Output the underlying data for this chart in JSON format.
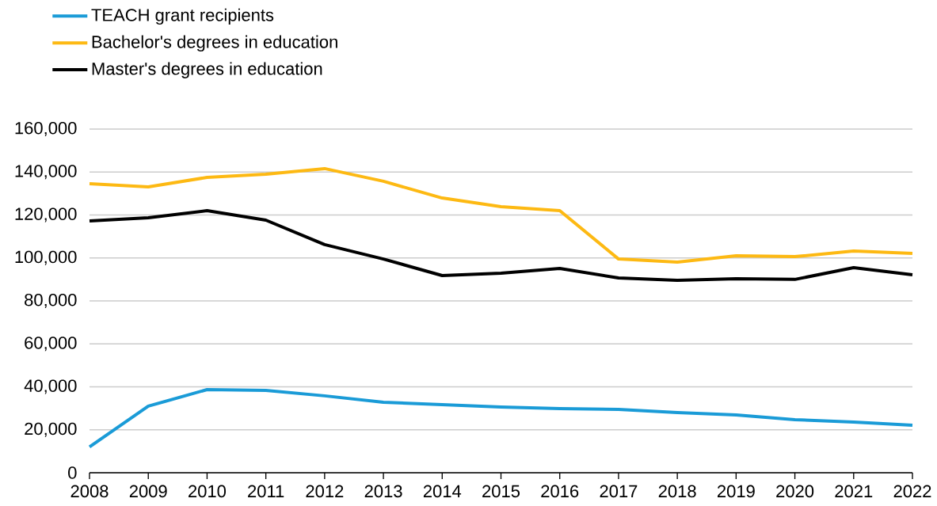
{
  "chart_data": {
    "type": "line",
    "x": [
      2008,
      2009,
      2010,
      2011,
      2012,
      2013,
      2014,
      2015,
      2016,
      2017,
      2018,
      2019,
      2020,
      2021,
      2022
    ],
    "series": [
      {
        "name": "TEACH grant recipients",
        "color": "#1a9bd7",
        "values": [
          12000,
          31000,
          38700,
          38300,
          35800,
          32800,
          31700,
          30600,
          29900,
          29500,
          28000,
          26900,
          24700,
          23600,
          22100
        ]
      },
      {
        "name": "Bachelor's degrees in education",
        "color": "#fdb913",
        "values": [
          134600,
          133100,
          137500,
          139000,
          141600,
          135700,
          127900,
          123900,
          122000,
          99500,
          98100,
          101000,
          100600,
          103200,
          102100
        ]
      },
      {
        "name": "Master's degrees in education",
        "color": "#000000",
        "values": [
          117200,
          118700,
          122000,
          117600,
          106200,
          99500,
          91800,
          92900,
          95100,
          90700,
          89600,
          90300,
          90000,
          95500,
          92200
        ]
      }
    ],
    "xlim": [
      2008,
      2022
    ],
    "xticks": [
      2008,
      2009,
      2010,
      2011,
      2012,
      2013,
      2014,
      2015,
      2016,
      2017,
      2018,
      2019,
      2020,
      2021,
      2022
    ],
    "ylim": [
      0,
      160000
    ],
    "yticks": [
      0,
      {
        "value": 20000,
        "label": "20,000"
      },
      {
        "value": 40000,
        "label": "40,000"
      },
      {
        "value": 60000,
        "label": "60,000"
      },
      {
        "value": 80000,
        "label": "80,000"
      },
      {
        "value": 100000,
        "label": "100,000"
      },
      {
        "value": 120000,
        "label": "120,000"
      },
      {
        "value": 140000,
        "label": "140,000"
      },
      {
        "value": 160000,
        "label": "160,000"
      }
    ],
    "grid": "y",
    "legend": "top left",
    "marker": "none",
    "line_style": "solid"
  }
}
